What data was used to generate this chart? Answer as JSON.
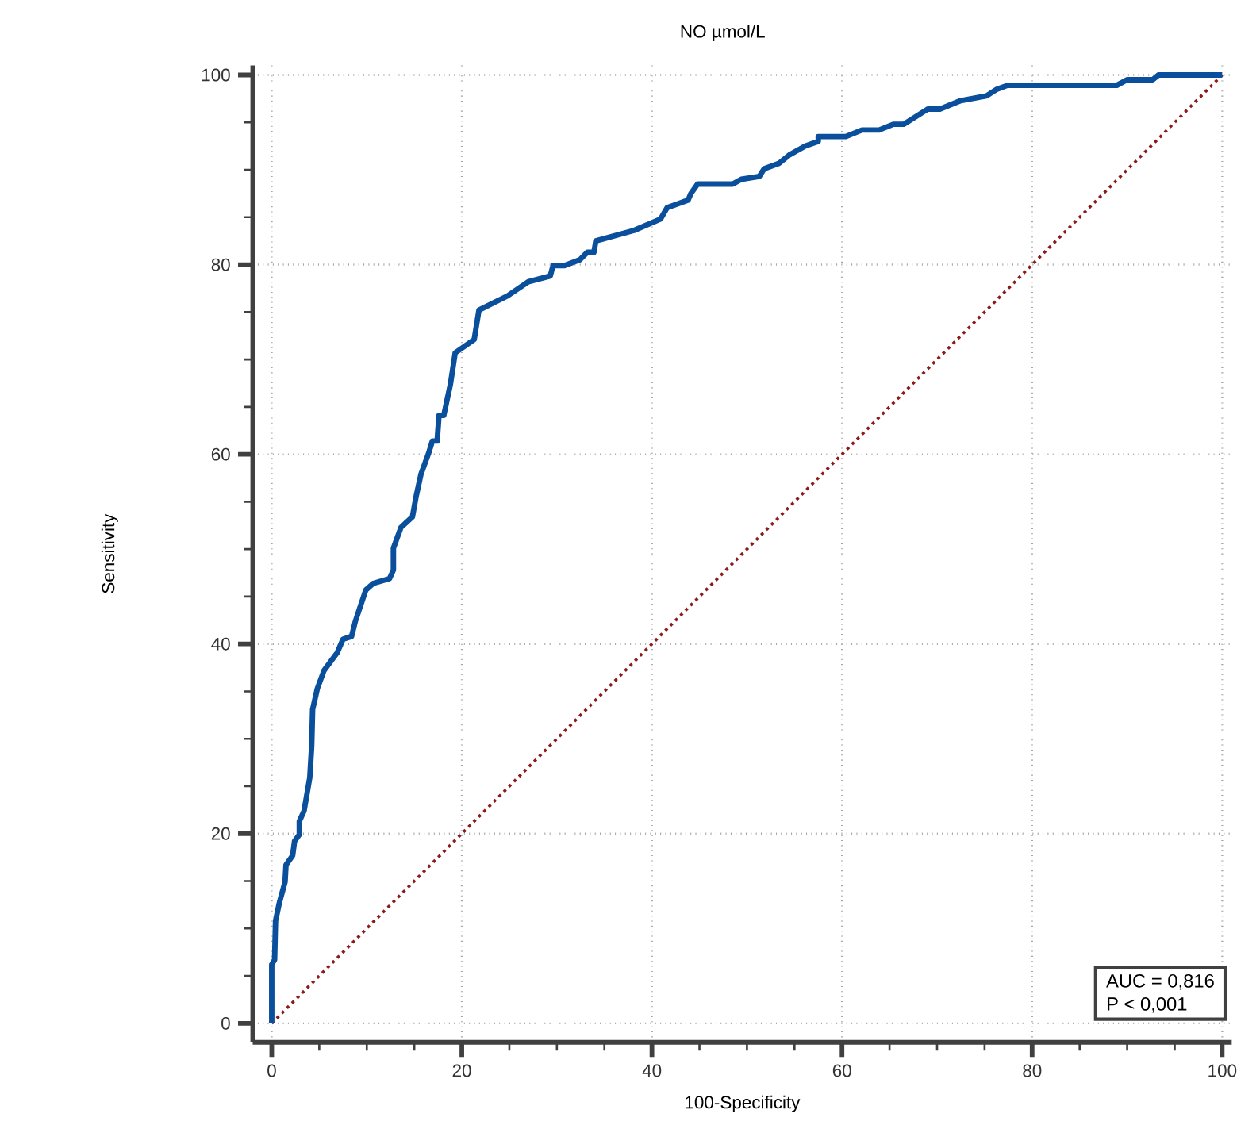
{
  "chart_data": {
    "type": "line",
    "title": "NO µmol/L",
    "xlabel": "100-Specificity",
    "ylabel": "Sensitivity",
    "xlim": [
      -2,
      101
    ],
    "ylim": [
      -2,
      101
    ],
    "xticks": [
      0,
      20,
      40,
      60,
      80,
      100
    ],
    "yticks": [
      0,
      20,
      40,
      60,
      80,
      100
    ],
    "grid": true,
    "annotations": [
      "AUC = 0,816",
      "P < 0,001"
    ],
    "series": [
      {
        "color": "#0a4f9c",
        "line_style": "solid",
        "x": [
          0,
          0,
          0.3,
          0.4,
          0.8,
          1.4,
          1.5,
          2.2,
          2.4,
          2.9,
          2.9,
          3.4,
          4.0,
          4.2,
          4.3,
          4.8,
          5.5,
          6.9,
          7.5,
          8.4,
          8.8,
          9.9,
          10.7,
          12.4,
          12.8,
          12.8,
          13.6,
          14.8,
          15.2,
          15.7,
          16.5,
          16.9,
          17.4,
          17.6,
          18.1,
          18.8,
          19.3,
          21.3,
          21.8,
          24.8,
          27.0,
          29.3,
          29.6,
          30.8,
          32.4,
          33.2,
          33.9,
          34.1,
          38.1,
          40.9,
          41.6,
          43.8,
          44.1,
          44.8,
          48.5,
          49.4,
          51.3,
          51.8,
          53.4,
          54.5,
          56.1,
          57.5,
          57.5,
          60.4,
          62.1,
          63.9,
          65.4,
          66.5,
          69.0,
          70.3,
          72.5,
          75.2,
          76.3,
          77.4,
          88.9,
          90.0,
          92.7,
          93.3,
          100
        ],
        "values": [
          0,
          6.2,
          6.7,
          10.8,
          12.7,
          14.9,
          16.7,
          17.7,
          19.2,
          19.9,
          21.3,
          22.4,
          25.9,
          29.2,
          33.1,
          35.3,
          37.2,
          39.1,
          40.5,
          40.8,
          42.4,
          45.7,
          46.4,
          46.9,
          47.8,
          50.1,
          52.3,
          53.4,
          55.6,
          57.9,
          60.1,
          61.4,
          61.4,
          64.1,
          64.1,
          67.4,
          70.7,
          72.1,
          75.2,
          76.7,
          78.2,
          78.8,
          79.9,
          79.9,
          80.5,
          81.3,
          81.3,
          82.5,
          83.6,
          84.8,
          86.0,
          86.8,
          87.5,
          88.5,
          88.5,
          89.0,
          89.3,
          90.1,
          90.7,
          91.6,
          92.5,
          93.0,
          93.5,
          93.5,
          94.2,
          94.2,
          94.8,
          94.8,
          96.4,
          96.4,
          97.3,
          97.8,
          98.5,
          98.9,
          98.9,
          99.5,
          99.5,
          100,
          100
        ]
      },
      {
        "type": "line",
        "color": "#8b1a1a",
        "line_style": "dotted",
        "x": [
          0,
          100
        ],
        "values": [
          0,
          100
        ]
      }
    ]
  }
}
